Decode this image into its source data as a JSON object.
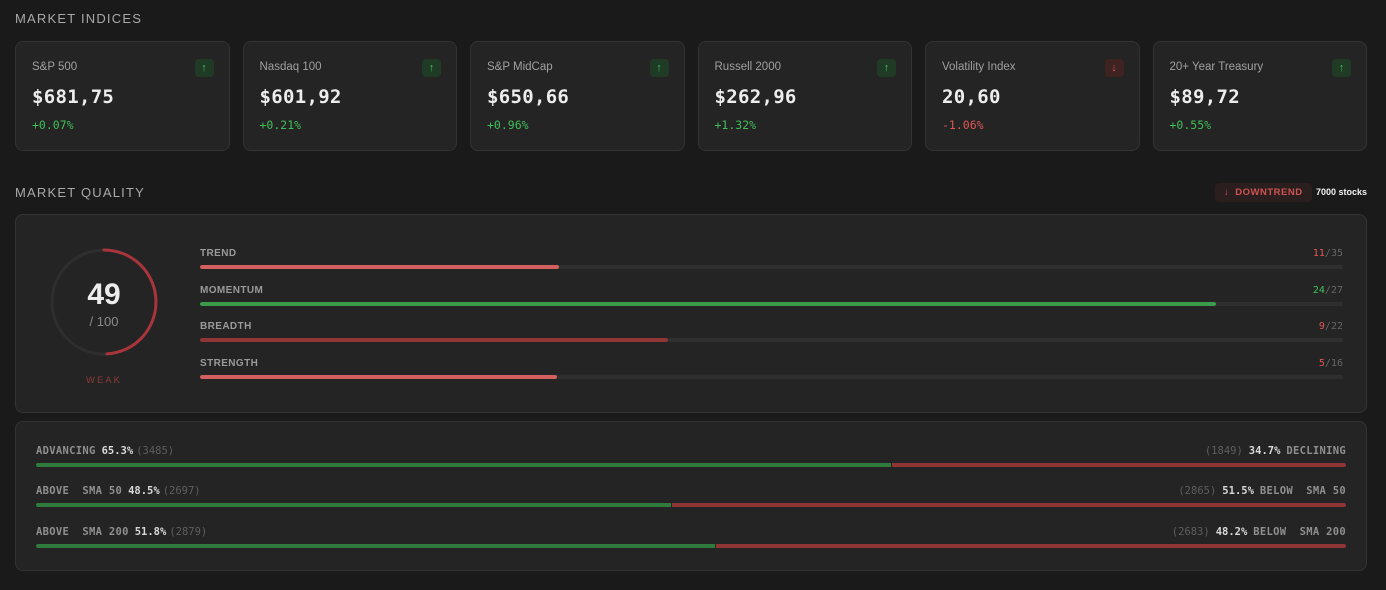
{
  "sections": {
    "indices_title": "MARKET INDICES",
    "quality_title": "MARKET QUALITY"
  },
  "indices": [
    {
      "name": "S&P 500",
      "price": "$681,75",
      "change": "+0.07%",
      "direction": "up"
    },
    {
      "name": "Nasdaq 100",
      "price": "$601,92",
      "change": "+0.21%",
      "direction": "up"
    },
    {
      "name": "S&P MidCap",
      "price": "$650,66",
      "change": "+0.96%",
      "direction": "up"
    },
    {
      "name": "Russell 2000",
      "price": "$262,96",
      "change": "+1.32%",
      "direction": "up"
    },
    {
      "name": "Volatility Index",
      "price": "20,60",
      "change": "-1.06%",
      "direction": "down"
    },
    {
      "name": "20+ Year Treasury",
      "price": "$89,72",
      "change": "+0.55%",
      "direction": "up"
    }
  ],
  "quality": {
    "trend_badge": "DOWNTREND",
    "stock_count": "7000 stocks",
    "score": "49",
    "score_max": "/ 100",
    "score_value": 49,
    "rating": "WEAK",
    "metrics": [
      {
        "name": "TREND",
        "value": "11",
        "max": "35",
        "status": "weak"
      },
      {
        "name": "MOMENTUM",
        "value": "24",
        "max": "27",
        "status": "strong"
      },
      {
        "name": "BREADTH",
        "value": "9",
        "max": "22",
        "status": "weak"
      },
      {
        "name": "STRENGTH",
        "value": "5",
        "max": "16",
        "status": "weak"
      }
    ]
  },
  "breadth": [
    {
      "left_label": "ADVANCING",
      "left_pct": "65.3%",
      "left_count": "(3485)",
      "right_label": "DECLINING",
      "right_pct": "34.7%",
      "right_count": "(1849)",
      "fraction": 0.653
    },
    {
      "left_label": "ABOVE  SMA 50",
      "left_pct": "48.5%",
      "left_count": "(2697)",
      "right_label": "BELOW  SMA 50",
      "right_pct": "51.5%",
      "right_count": "(2865)",
      "fraction": 0.485
    },
    {
      "left_label": "ABOVE  SMA 200",
      "left_pct": "51.8%",
      "left_count": "(2879)",
      "right_label": "BELOW  SMA 200",
      "right_pct": "48.2%",
      "right_count": "(2683)",
      "fraction": 0.518
    }
  ],
  "colors": {
    "positive": "#3fbf58",
    "negative": "#e05757",
    "bar_weak": "#d45f5f",
    "bar_breadth": "#8f3535",
    "bar_strong": "#3a9a4a",
    "gauge": "#a8343c"
  },
  "icons": {
    "up": "arrow-up-icon",
    "down": "arrow-down-icon"
  }
}
